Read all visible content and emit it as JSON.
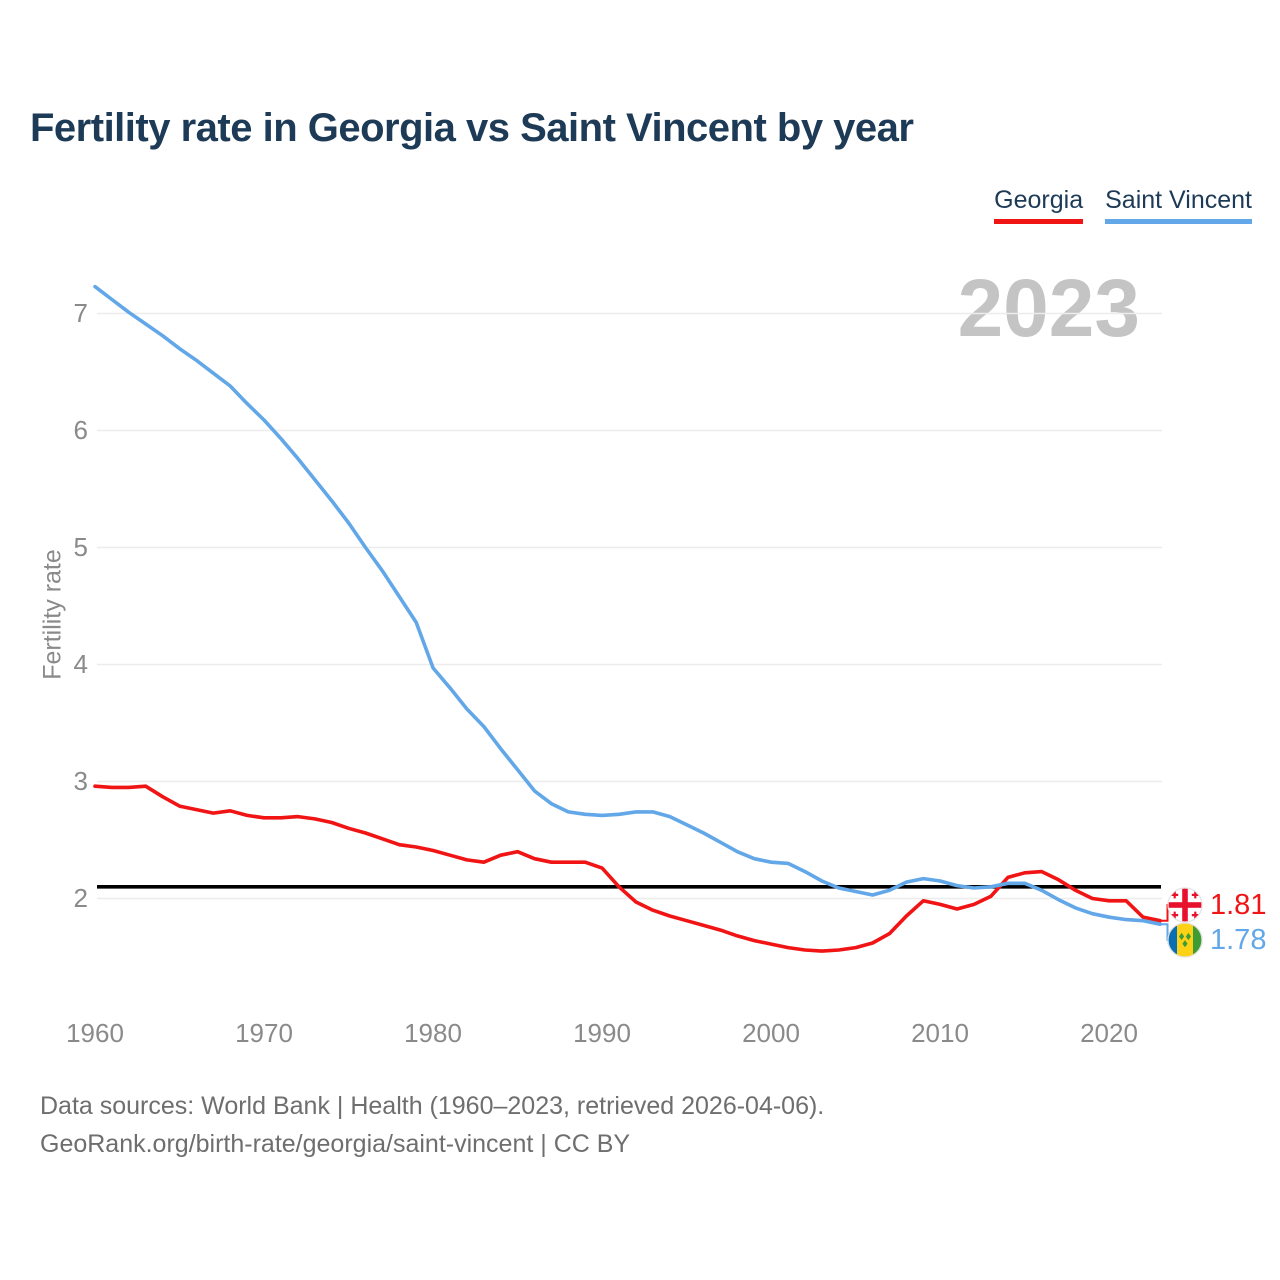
{
  "title": "Fertility rate in Georgia vs Saint Vincent by year",
  "watermark_year": "2023",
  "legend": {
    "items": [
      {
        "label": "Georgia",
        "color": "#F01414"
      },
      {
        "label": "Saint Vincent",
        "color": "#62A7E7"
      }
    ]
  },
  "y_axis": {
    "label": "Fertility rate",
    "ticks": [
      "7",
      "6",
      "5",
      "4",
      "3",
      "2"
    ]
  },
  "x_axis": {
    "ticks": [
      "1960",
      "1970",
      "1980",
      "1990",
      "2000",
      "2010",
      "2020"
    ]
  },
  "end_labels": [
    {
      "country": "Georgia",
      "value": "1.81",
      "flag": "georgia-flag"
    },
    {
      "country": "Saint Vincent",
      "value": "1.78",
      "flag": "saint-vincent-flag"
    }
  ],
  "footer": {
    "line1": "Data sources: World Bank | Health (1960–2023, retrieved 2026-04-06).",
    "line2": "GeoRank.org/birth-rate/georgia/saint-vincent | CC BY"
  },
  "chart_data": {
    "type": "line",
    "title": "Fertility rate in Georgia vs Saint Vincent by year",
    "xlabel": "",
    "ylabel": "Fertility rate",
    "xlim": [
      1960,
      2023
    ],
    "ylim": [
      1.4,
      7.45
    ],
    "grid": "horizontal-only",
    "grid_color": "#ececec",
    "legend_position": "top-right",
    "reference_line": {
      "value": 2.1,
      "color": "#000000"
    },
    "x": [
      1960,
      1961,
      1962,
      1963,
      1964,
      1965,
      1966,
      1967,
      1968,
      1969,
      1970,
      1971,
      1972,
      1973,
      1974,
      1975,
      1976,
      1977,
      1978,
      1979,
      1980,
      1981,
      1982,
      1983,
      1984,
      1985,
      1986,
      1987,
      1988,
      1989,
      1990,
      1991,
      1992,
      1993,
      1994,
      1995,
      1996,
      1997,
      1998,
      1999,
      2000,
      2001,
      2002,
      2003,
      2004,
      2005,
      2006,
      2007,
      2008,
      2009,
      2010,
      2011,
      2012,
      2013,
      2014,
      2015,
      2016,
      2017,
      2018,
      2019,
      2020,
      2021,
      2022,
      2023
    ],
    "series": [
      {
        "name": "Georgia",
        "color": "#F01414",
        "values": [
          2.96,
          2.95,
          2.95,
          2.96,
          2.87,
          2.79,
          2.76,
          2.73,
          2.75,
          2.71,
          2.69,
          2.69,
          2.7,
          2.68,
          2.65,
          2.6,
          2.56,
          2.51,
          2.46,
          2.44,
          2.41,
          2.37,
          2.33,
          2.31,
          2.37,
          2.4,
          2.34,
          2.31,
          2.31,
          2.31,
          2.26,
          2.1,
          1.97,
          1.9,
          1.85,
          1.81,
          1.77,
          1.73,
          1.68,
          1.64,
          1.61,
          1.58,
          1.56,
          1.55,
          1.56,
          1.58,
          1.62,
          1.7,
          1.85,
          1.98,
          1.95,
          1.91,
          1.95,
          2.02,
          2.18,
          2.22,
          2.23,
          2.16,
          2.07,
          2.0,
          1.98,
          1.98,
          1.84,
          1.81
        ]
      },
      {
        "name": "Saint Vincent",
        "color": "#62A7E7",
        "values": [
          7.23,
          7.12,
          7.01,
          6.91,
          6.81,
          6.7,
          6.6,
          6.49,
          6.38,
          6.23,
          6.09,
          5.93,
          5.76,
          5.58,
          5.4,
          5.21,
          5.0,
          4.8,
          4.58,
          4.36,
          3.97,
          3.8,
          3.62,
          3.47,
          3.28,
          3.1,
          2.92,
          2.81,
          2.74,
          2.72,
          2.71,
          2.72,
          2.74,
          2.74,
          2.7,
          2.63,
          2.56,
          2.48,
          2.4,
          2.34,
          2.31,
          2.3,
          2.23,
          2.15,
          2.09,
          2.06,
          2.03,
          2.07,
          2.14,
          2.17,
          2.15,
          2.11,
          2.09,
          2.1,
          2.13,
          2.13,
          2.07,
          1.99,
          1.92,
          1.87,
          1.84,
          1.82,
          1.81,
          1.78
        ]
      }
    ]
  }
}
